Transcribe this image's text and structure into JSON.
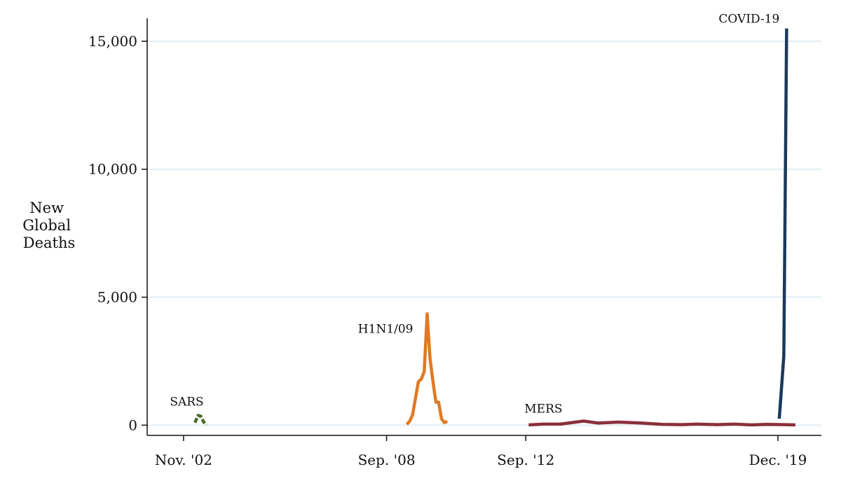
{
  "chart_data": {
    "type": "line",
    "title": "",
    "xlabel": "",
    "ylabel": [
      "New",
      "Global",
      "Deaths"
    ],
    "ylim": [
      -400,
      15900
    ],
    "yticks": [
      {
        "value": 0,
        "label": "0"
      },
      {
        "value": 5000,
        "label": "5,000"
      },
      {
        "value": 10000,
        "label": "10,000"
      },
      {
        "value": 15000,
        "label": "15,000"
      }
    ],
    "xlim": [
      "2001-10-15",
      "2021-03-01"
    ],
    "xticks": [
      {
        "value": "2002-11-01",
        "label": "Nov. '02"
      },
      {
        "value": "2008-09-01",
        "label": "Sep. '08"
      },
      {
        "value": "2012-09-01",
        "label": "Sep. '12"
      },
      {
        "value": "2019-12-01",
        "label": "Dec. '19"
      }
    ],
    "grid": "horizontal",
    "legend": "none",
    "series": [
      {
        "name": "SARS",
        "color": "#4a6b2e",
        "dash": "dashed",
        "points": [
          [
            "2003-03-01",
            100
          ],
          [
            "2003-04-01",
            380
          ],
          [
            "2003-05-01",
            350
          ],
          [
            "2003-06-01",
            120
          ],
          [
            "2003-07-01",
            10
          ]
        ]
      },
      {
        "name": "H1N1/09",
        "color": "#e07a25",
        "dash": "solid",
        "points": [
          [
            "2009-04-01",
            30
          ],
          [
            "2009-05-01",
            150
          ],
          [
            "2009-06-01",
            400
          ],
          [
            "2009-07-01",
            1050
          ],
          [
            "2009-08-01",
            1700
          ],
          [
            "2009-09-01",
            1800
          ],
          [
            "2009-10-01",
            2100
          ],
          [
            "2009-11-01",
            4350
          ],
          [
            "2009-12-01",
            2600
          ],
          [
            "2010-01-01",
            1700
          ],
          [
            "2010-02-01",
            900
          ],
          [
            "2010-03-01",
            900
          ],
          [
            "2010-04-01",
            250
          ],
          [
            "2010-05-01",
            100
          ],
          [
            "2010-06-01",
            150
          ]
        ]
      },
      {
        "name": "MERS",
        "color": "#8b2f3c",
        "dash": "solid",
        "points": [
          [
            "2012-10-01",
            10
          ],
          [
            "2013-03-01",
            40
          ],
          [
            "2013-09-01",
            40
          ],
          [
            "2014-05-01",
            160
          ],
          [
            "2014-10-01",
            80
          ],
          [
            "2015-05-01",
            120
          ],
          [
            "2016-01-01",
            80
          ],
          [
            "2016-08-01",
            30
          ],
          [
            "2017-03-01",
            20
          ],
          [
            "2017-08-01",
            40
          ],
          [
            "2018-03-01",
            20
          ],
          [
            "2018-09-01",
            40
          ],
          [
            "2019-03-01",
            10
          ],
          [
            "2019-08-01",
            30
          ],
          [
            "2020-02-01",
            20
          ],
          [
            "2020-06-01",
            10
          ]
        ]
      },
      {
        "name": "COVID-19",
        "color": "#1b3a5c",
        "dash": "solid",
        "points": [
          [
            "2019-12-15",
            250
          ],
          [
            "2020-02-01",
            2700
          ],
          [
            "2020-03-01",
            15500
          ]
        ]
      }
    ],
    "annotations": [
      {
        "text": "SARS",
        "series": "SARS"
      },
      {
        "text": "H1N1/09",
        "series": "H1N1/09"
      },
      {
        "text": "MERS",
        "series": "MERS"
      },
      {
        "text": "COVID-19",
        "series": "COVID-19"
      }
    ]
  }
}
